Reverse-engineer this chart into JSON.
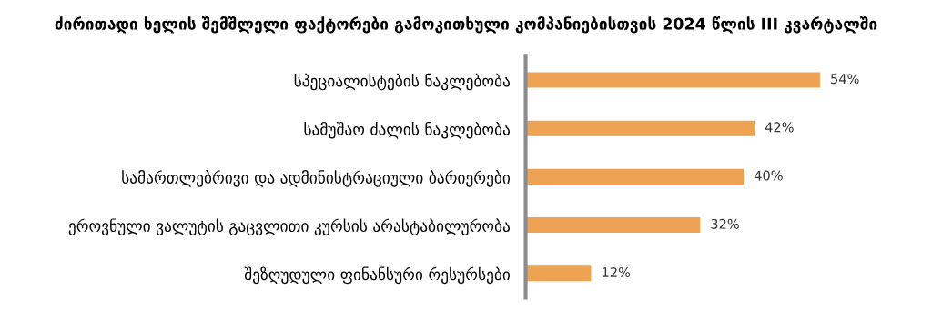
{
  "chart_data": {
    "type": "bar",
    "orientation": "horizontal",
    "title": "ძირითადი ხელის შემშლელი ფაქტორები გამოკითხული კომპანიებისთვის 2024 წლის III კვარტალში",
    "categories": [
      "სპეციალისტების ნაკლებობა",
      "სამუშაო ძალის ნაკლებობა",
      "სამართლებრივი და ადმინისტრაციული ბარიერები",
      "ეროვნული ვალუტის გაცვლითი კურსის არასტაბილურობა",
      "შეზღუდული ფინანსური რესურსები"
    ],
    "values": [
      54,
      42,
      40,
      32,
      12
    ],
    "value_labels": [
      "54%",
      "42%",
      "40%",
      "32%",
      "12%"
    ],
    "color": "#eea253",
    "grid": false,
    "legend": false
  }
}
